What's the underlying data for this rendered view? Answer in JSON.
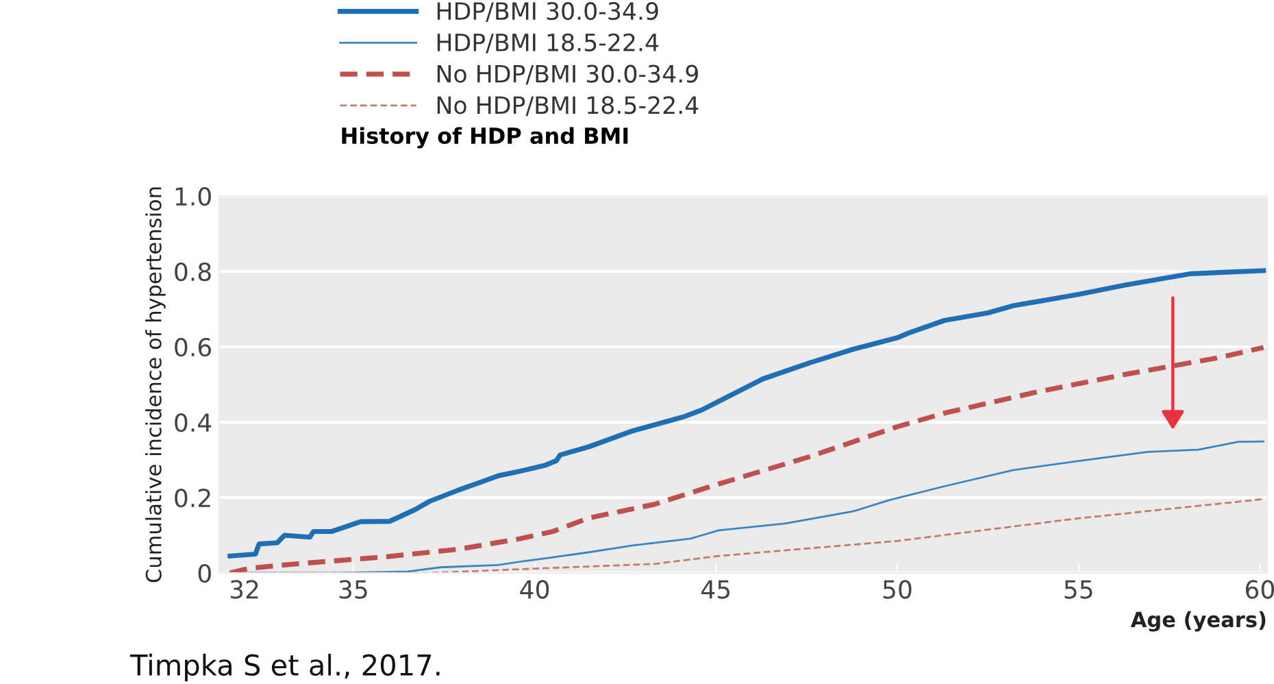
{
  "chart_data": {
    "type": "line",
    "xlabel": "Age (years)",
    "ylabel": "Cumulative incidence of hypertension",
    "legend_title": "History of HDP and BMI",
    "annotations": [
      "Timpka S et al., 2017."
    ],
    "xlim": [
      31.3,
      60.2
    ],
    "ylim": [
      0,
      1.0
    ],
    "xticks": [
      32,
      35,
      40,
      45,
      50,
      55,
      60
    ],
    "yticks": [
      0,
      0.2,
      0.4,
      0.6,
      0.8,
      {
        "value": 1.0,
        "label": "1.0"
      }
    ],
    "grid": "y",
    "legend": "top left",
    "series": [
      {
        "name": "HDP/BMI 30.0-34.9",
        "color": "#1f6fb5",
        "line_style": "solid",
        "x": [
          31.6,
          32.3,
          32.4,
          32.9,
          33.1,
          33.8,
          33.9,
          34.4,
          35.2,
          36.0,
          36.7,
          37.1,
          37.9,
          38.4,
          39.0,
          39.6,
          40.3,
          40.6,
          40.7,
          41.5,
          42.7,
          44.1,
          44.6,
          45.07,
          46.3,
          47.6,
          48.8,
          50.0,
          50.3,
          51.3,
          52.5,
          53.2,
          55.0,
          56.3,
          57.5,
          58.1,
          60.1
        ],
        "values": [
          0.045,
          0.05,
          0.077,
          0.08,
          0.1,
          0.095,
          0.11,
          0.11,
          0.136,
          0.137,
          0.168,
          0.19,
          0.22,
          0.237,
          0.258,
          0.27,
          0.286,
          0.298,
          0.313,
          0.335,
          0.377,
          0.414,
          0.432,
          0.455,
          0.515,
          0.558,
          0.594,
          0.624,
          0.636,
          0.67,
          0.69,
          0.709,
          0.739,
          0.764,
          0.784,
          0.794,
          0.802
        ]
      },
      {
        "name": "HDP/BMI 18.5-22.4",
        "color": "#3a85c4",
        "line_style": "solid",
        "x": [
          31.6,
          34.6,
          36.5,
          37.4,
          39.0,
          39.6,
          40.3,
          41.5,
          42.7,
          44.3,
          45.07,
          46.9,
          48.8,
          49.8,
          51.3,
          53.2,
          55.0,
          56.9,
          58.3,
          59.4,
          60.1
        ],
        "values": [
          0,
          0,
          0.004,
          0.015,
          0.021,
          0.03,
          0.039,
          0.055,
          0.073,
          0.091,
          0.113,
          0.131,
          0.164,
          0.194,
          0.23,
          0.273,
          0.297,
          0.321,
          0.327,
          0.348,
          0.349
        ]
      },
      {
        "name": "No HDP/BMI 30.0-34.9",
        "color": "#c0504d",
        "line_style": "dashed",
        "x": [
          31.6,
          32.1,
          33.4,
          35.9,
          37.9,
          39.6,
          40.5,
          41.5,
          43.3,
          45.07,
          47.6,
          50.0,
          51.3,
          53.8,
          56.3,
          58.8,
          60.1
        ],
        "values": [
          0,
          0.012,
          0.024,
          0.043,
          0.063,
          0.091,
          0.11,
          0.146,
          0.182,
          0.236,
          0.309,
          0.388,
          0.424,
          0.479,
          0.527,
          0.57,
          0.598
        ]
      },
      {
        "name": "No HDP/BMI 18.5-22.4",
        "color": "#c87a6a",
        "line_style": "dashed",
        "x": [
          31.6,
          37.1,
          39.6,
          43.3,
          45.07,
          50.0,
          55.0,
          60.1
        ],
        "values": [
          0,
          0,
          0.01,
          0.024,
          0.045,
          0.085,
          0.145,
          0.196
        ]
      }
    ]
  }
}
